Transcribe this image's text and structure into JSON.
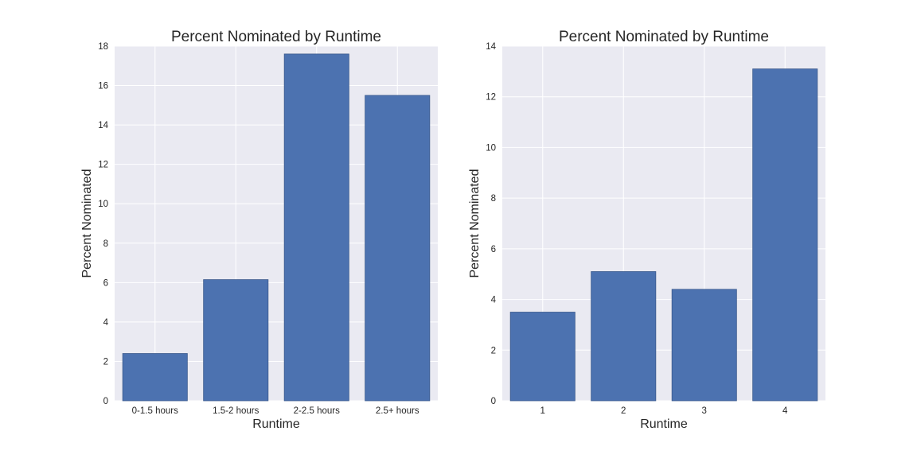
{
  "chart_data": [
    {
      "type": "bar",
      "title": "Percent Nominated by Runtime",
      "xlabel": "Runtime",
      "ylabel": "Percent Nominated",
      "categories": [
        "0-1.5 hours",
        "1.5-2 hours",
        "2-2.5 hours",
        "2.5+ hours"
      ],
      "values": [
        2.4,
        6.15,
        17.6,
        15.5
      ],
      "ylim": [
        0,
        18
      ],
      "yticks": [
        0,
        2,
        4,
        6,
        8,
        10,
        12,
        14,
        16,
        18
      ],
      "grid": true
    },
    {
      "type": "bar",
      "title": "Percent Nominated by Runtime",
      "xlabel": "Runtime",
      "ylabel": "Percent Nominated",
      "categories": [
        "1",
        "2",
        "3",
        "4"
      ],
      "values": [
        3.5,
        5.1,
        4.4,
        13.1
      ],
      "ylim": [
        0,
        14
      ],
      "yticks": [
        0,
        2,
        4,
        6,
        8,
        10,
        12,
        14
      ],
      "grid": true
    }
  ],
  "colors": {
    "bar_fill": "#4c72b0",
    "bar_edge": "#3b5a8c",
    "plot_bg": "#eaeaf2",
    "grid": "#ffffff",
    "text": "#262626"
  }
}
